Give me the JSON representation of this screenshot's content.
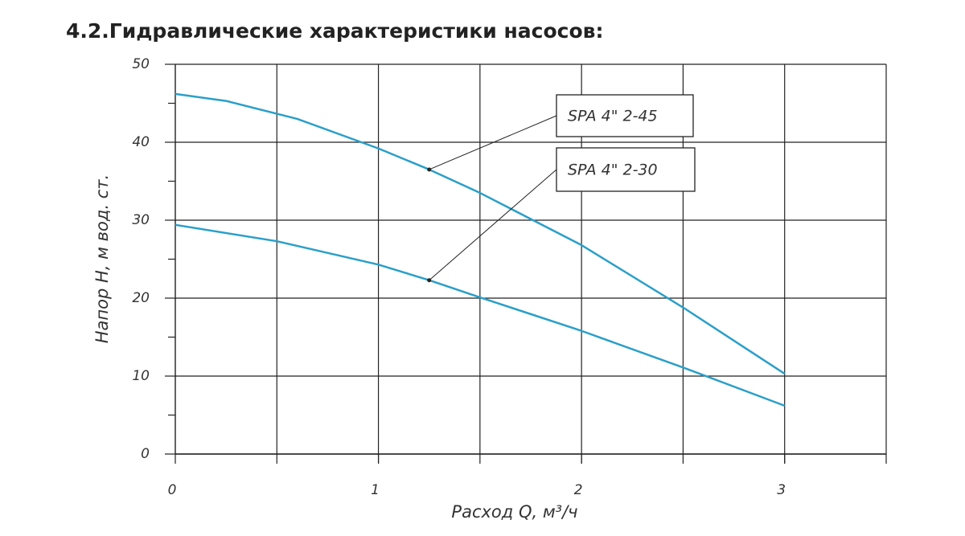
{
  "chart_data": {
    "type": "line",
    "title": "4.2.Гидравлические характеристики насосов:",
    "x_label": "Расход Q, м³/ч",
    "y_label": "Напор H, м вод. ст.",
    "xlim": [
      0,
      3.5
    ],
    "ylim": [
      0,
      50
    ],
    "xticks": [
      0,
      1,
      2,
      3
    ],
    "xgrid": [
      0.5,
      1,
      1.5,
      2,
      2.5,
      3,
      3.5
    ],
    "yticks": [
      0,
      10,
      20,
      30,
      40,
      50
    ],
    "yminor_ticks": [
      5,
      15,
      25,
      35,
      45
    ],
    "grid": true,
    "series": [
      {
        "name": "SPA 4\" 2-45",
        "color": "#2a9fc9",
        "x": [
          0,
          0.25,
          0.6,
          1,
          1.25,
          1.5,
          2,
          2.5,
          3
        ],
        "values": [
          46.2,
          45.3,
          43,
          39.2,
          36.5,
          33.5,
          26.8,
          18.8,
          10.3
        ]
      },
      {
        "name": "SPA 4\" 2-30",
        "color": "#2a9fc9",
        "x": [
          0,
          0.5,
          1,
          1.25,
          1.5,
          2,
          2.5,
          3
        ],
        "values": [
          29.4,
          27.3,
          24.3,
          22.3,
          20.1,
          15.8,
          11.1,
          6.2
        ]
      }
    ],
    "annotations": [
      {
        "text": "SPA 4\" 2-45",
        "x": 1.25,
        "y": 36.5
      },
      {
        "text": "SPA 4\" 2-30",
        "x": 1.25,
        "y": 22.3
      }
    ]
  }
}
